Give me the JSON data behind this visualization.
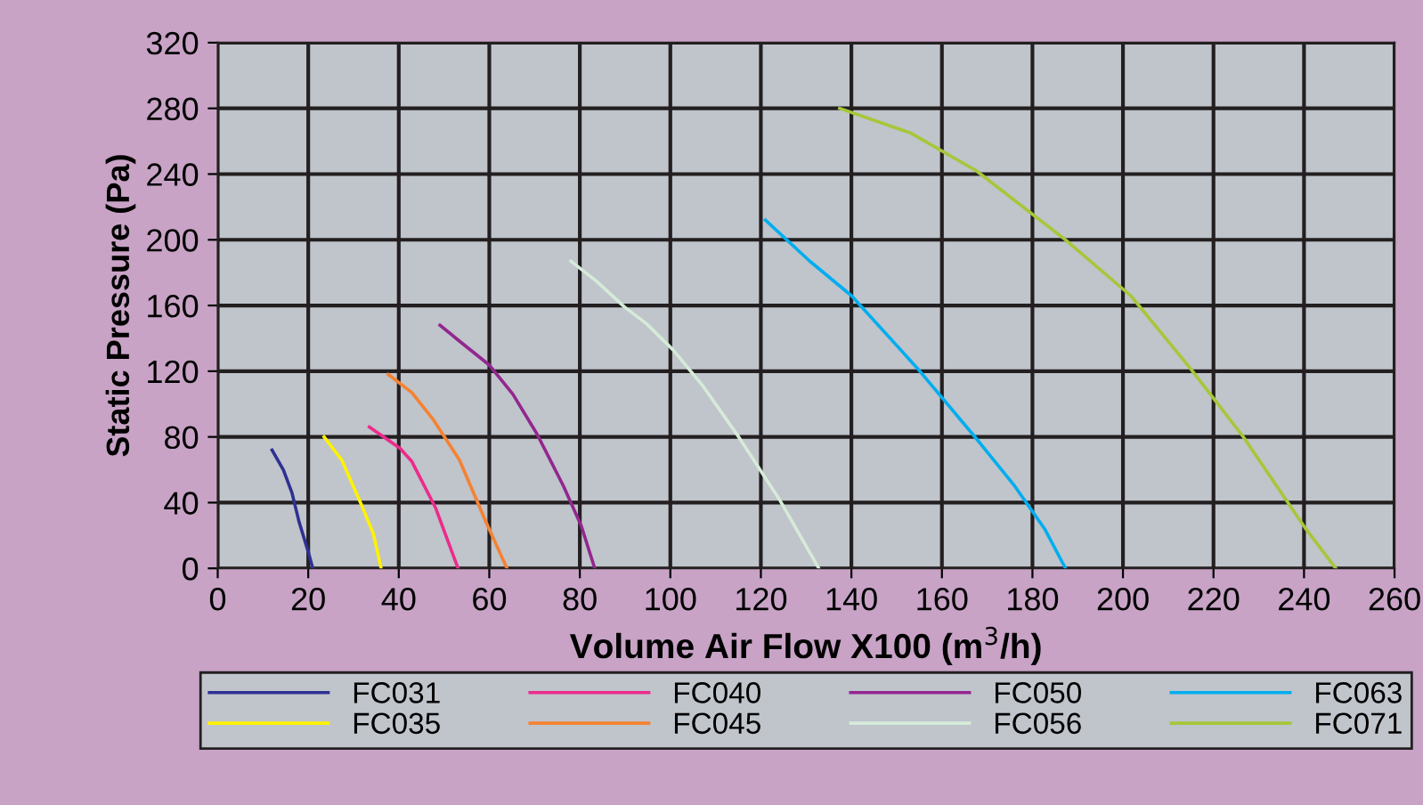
{
  "chart_data": {
    "type": "line",
    "xlabel": "Volume Air Flow X100 (m$^{3}$/h)",
    "ylabel": "Static Pressure (Pa)",
    "xlim": [
      0,
      260
    ],
    "xticks": [
      0,
      20,
      40,
      60,
      80,
      100,
      120,
      140,
      160,
      180,
      200,
      220,
      240,
      260
    ],
    "ylim": [
      0,
      320
    ],
    "yticks": [
      0,
      40,
      80,
      120,
      160,
      200,
      240,
      280,
      320
    ],
    "grid": true,
    "legend": "bottom",
    "marker": "none",
    "line_style": "solid",
    "series": [
      {
        "name": "FC031",
        "color": "#2e3192",
        "x": [
          12,
          14.5,
          16.4,
          18,
          20,
          21
        ],
        "values": [
          72,
          60,
          46,
          28,
          10,
          0
        ]
      },
      {
        "name": "FC035",
        "color": "#fff200",
        "x": [
          23.5,
          27.4,
          31.7,
          34.4,
          36.1
        ],
        "values": [
          80,
          66,
          39,
          21,
          0
        ]
      },
      {
        "name": "FC040",
        "color": "#ec2b8c",
        "x": [
          33.5,
          40.3,
          42.9,
          48.1,
          53.1
        ],
        "values": [
          86,
          73,
          65,
          37,
          0
        ]
      },
      {
        "name": "FC045",
        "color": "#f58232",
        "x": [
          37.7,
          42.9,
          47.5,
          53.4,
          59.3,
          63.9
        ],
        "values": [
          118,
          107,
          91,
          66,
          28,
          0
        ]
      },
      {
        "name": "FC050",
        "color": "#92278f",
        "x": [
          49.1,
          54,
          59.9,
          65.2,
          70.5,
          76.4,
          80.3,
          83.3
        ],
        "values": [
          148,
          137,
          124,
          106,
          82,
          50,
          26,
          0
        ]
      },
      {
        "name": "FC056",
        "color": "#d5ebd8",
        "x": [
          78,
          83.6,
          89.9,
          94.7,
          100.6,
          107.2,
          115.1,
          124.3,
          132.8
        ],
        "values": [
          187,
          175,
          159,
          149,
          133,
          111,
          80,
          41,
          0
        ]
      },
      {
        "name": "FC063",
        "color": "#00aeef",
        "x": [
          121,
          130.8,
          140,
          154.5,
          167.6,
          176.1,
          182.7,
          187.3
        ],
        "values": [
          212,
          187,
          166,
          122,
          79,
          50,
          24,
          0
        ]
      },
      {
        "name": "FC071",
        "color": "#a6c73a",
        "x": [
          137.4,
          153.1,
          167.6,
          187.3,
          201.7,
          214.8,
          226.6,
          240.4,
          247
        ],
        "values": [
          280,
          265,
          242,
          200,
          166,
          122,
          80,
          24,
          0
        ]
      }
    ]
  }
}
